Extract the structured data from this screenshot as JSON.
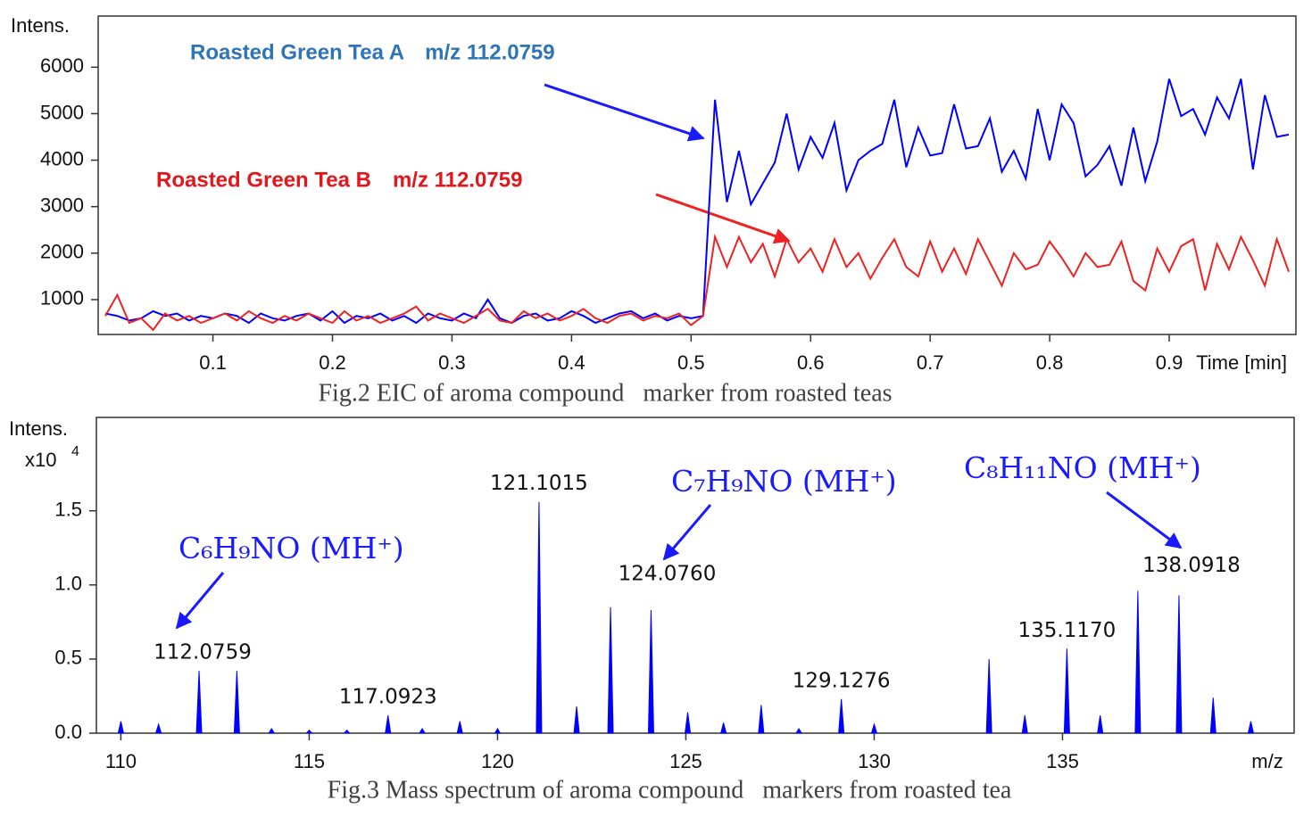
{
  "chart_data": [
    {
      "type": "line",
      "title": "Fig.2 EIC of aroma compound   marker from roasted teas",
      "y_label": "Intens.",
      "x_label": "Time [min]",
      "xlim": [
        0.004,
        1.006
      ],
      "ylim": [
        250,
        7100
      ],
      "xticks": [
        0.1,
        0.2,
        0.3,
        0.4,
        0.5,
        0.6,
        0.7,
        0.8,
        0.9
      ],
      "yticks": [
        1000,
        2000,
        3000,
        4000,
        5000,
        6000
      ],
      "x": [
        0.01,
        0.02,
        0.03,
        0.04,
        0.05,
        0.06,
        0.07,
        0.08,
        0.09,
        0.1,
        0.11,
        0.12,
        0.13,
        0.14,
        0.15,
        0.16,
        0.17,
        0.18,
        0.19,
        0.2,
        0.21,
        0.22,
        0.23,
        0.24,
        0.25,
        0.26,
        0.27,
        0.28,
        0.29,
        0.3,
        0.31,
        0.32,
        0.33,
        0.34,
        0.35,
        0.36,
        0.37,
        0.38,
        0.39,
        0.4,
        0.41,
        0.42,
        0.43,
        0.44,
        0.45,
        0.46,
        0.47,
        0.48,
        0.49,
        0.5,
        0.51,
        0.52,
        0.53,
        0.54,
        0.55,
        0.56,
        0.57,
        0.58,
        0.59,
        0.6,
        0.61,
        0.62,
        0.63,
        0.64,
        0.65,
        0.66,
        0.67,
        0.68,
        0.69,
        0.7,
        0.71,
        0.72,
        0.73,
        0.74,
        0.75,
        0.76,
        0.77,
        0.78,
        0.79,
        0.8,
        0.81,
        0.82,
        0.83,
        0.84,
        0.85,
        0.86,
        0.87,
        0.88,
        0.89,
        0.9,
        0.91,
        0.92,
        0.93,
        0.94,
        0.95,
        0.96,
        0.97,
        0.98,
        0.99,
        1
      ],
      "series": [
        {
          "name": "Roasted Green Tea A　m/z 112.0759",
          "color": "#0000ff",
          "label_color": "#2f74b5",
          "values": [
            700,
            650,
            550,
            600,
            750,
            650,
            700,
            550,
            650,
            600,
            700,
            650,
            500,
            700,
            600,
            550,
            650,
            700,
            550,
            750,
            500,
            650,
            600,
            700,
            550,
            650,
            500,
            700,
            600,
            550,
            700,
            600,
            1000,
            600,
            500,
            650,
            700,
            550,
            600,
            750,
            650,
            500,
            600,
            700,
            750,
            600,
            700,
            550,
            650,
            600,
            650,
            5300,
            3100,
            4200,
            3050,
            3500,
            3950,
            5000,
            3800,
            4500,
            4050,
            4800,
            3350,
            4000,
            4200,
            4350,
            5300,
            3850,
            4700,
            4100,
            4150,
            5200,
            4250,
            4300,
            4900,
            3750,
            4200,
            3600,
            5100,
            4000,
            5200,
            4800,
            3650,
            3900,
            4300,
            3450,
            4700,
            3550,
            4400,
            5750,
            4950,
            5100,
            4550,
            5350,
            4900,
            5750,
            3800,
            5400,
            4500,
            4550
          ]
        },
        {
          "name": "Roasted Green Tea B　m/z 112.0759",
          "color": "#ee2222",
          "label_color": "#e3171b",
          "values": [
            650,
            1100,
            500,
            600,
            350,
            700,
            550,
            650,
            500,
            600,
            700,
            550,
            750,
            600,
            500,
            650,
            550,
            700,
            600,
            500,
            750,
            550,
            650,
            500,
            600,
            700,
            850,
            550,
            700,
            600,
            500,
            650,
            800,
            550,
            500,
            750,
            600,
            700,
            550,
            650,
            800,
            600,
            500,
            650,
            700,
            550,
            650,
            600,
            700,
            450,
            650,
            2350,
            1700,
            2350,
            1800,
            2200,
            1500,
            2300,
            1800,
            2100,
            1600,
            2300,
            1700,
            2000,
            1450,
            1900,
            2300,
            1700,
            1500,
            2250,
            1600,
            2100,
            1550,
            2300,
            1800,
            1300,
            2000,
            1650,
            1750,
            2250,
            1900,
            1500,
            2000,
            1700,
            1750,
            2250,
            1400,
            1200,
            2100,
            1600,
            2150,
            2300,
            1200,
            2200,
            1650,
            2350,
            1850,
            1300,
            2300,
            1600
          ]
        }
      ]
    },
    {
      "type": "stem",
      "title": "Fig.3 Mass spectrum of aroma compound   markers from roasted tea",
      "y_label": "Intens.",
      "y_scale_label": "x10",
      "y_scale_exponent": "4",
      "x_label": "m/z",
      "xlim": [
        109.35,
        141.15
      ],
      "ylim": [
        0,
        2.13
      ],
      "xticks": [
        110,
        115,
        120,
        125,
        130,
        135
      ],
      "yticks": [
        {
          "value": 0,
          "label": "0.0"
        },
        0.5,
        {
          "value": 1,
          "label": "1.0"
        },
        1.5
      ],
      "color": "#0000ff",
      "x": [
        110,
        111,
        112.0759,
        113.08,
        114,
        115,
        116,
        117.0923,
        118,
        119,
        120,
        121.1015,
        122.1,
        123,
        124.076,
        125.05,
        126,
        127,
        128,
        129.1276,
        130,
        133.05,
        134,
        135.117,
        136,
        137,
        138.0918,
        139,
        140
      ],
      "values": [
        0.08,
        0.06,
        0.42,
        0.42,
        0.03,
        0.02,
        0.02,
        0.12,
        0.03,
        0.08,
        0.03,
        1.56,
        0.18,
        0.85,
        0.83,
        0.14,
        0.07,
        0.19,
        0.03,
        0.23,
        0.06,
        0.5,
        0.12,
        0.57,
        0.12,
        0.96,
        0.93,
        0.24,
        0.08
      ],
      "x_labels": [
        null,
        null,
        "112.0759",
        null,
        null,
        null,
        null,
        "117.0923",
        null,
        null,
        null,
        "121.1015",
        null,
        null,
        "124.0760",
        null,
        null,
        null,
        null,
        "129.1276",
        null,
        null,
        null,
        "135.1170",
        null,
        null,
        "138.0918",
        null,
        null
      ],
      "annotations": [
        "C₆H₉NO (MH⁺)",
        "C₇H₉NO (MH⁺)",
        "C₈H₁₁NO (MH⁺)"
      ]
    }
  ]
}
